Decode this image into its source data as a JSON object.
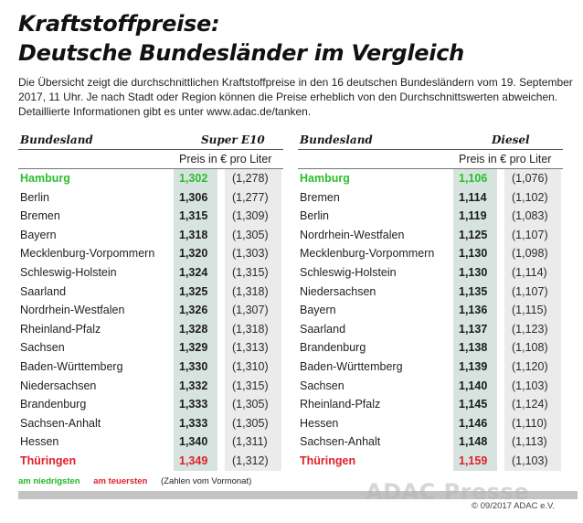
{
  "title_line1": "Kraftstoffpreise:",
  "title_line2": "Deutsche Bundesländer im Vergleich",
  "intro": "Die Übersicht zeigt die durchschnittlichen Kraftstoffpreise in den 16 deutschen Bundesländern vom 19. September 2017, 11 Uhr. Je nach Stadt oder Region können die Preise erheblich von den Durchschnittswerten abweichen. Detaillierte Informationen gibt es unter www.adac.de/tanken.",
  "e10": {
    "col_state": "Bundesland",
    "col_fuel": "Super E10",
    "unit": "Preis in € pro Liter",
    "rows": [
      {
        "state": "Hamburg",
        "price": "1,302",
        "prev": "(1,278)",
        "mark": "low"
      },
      {
        "state": "Berlin",
        "price": "1,306",
        "prev": "(1,277)",
        "mark": ""
      },
      {
        "state": "Bremen",
        "price": "1,315",
        "prev": "(1,309)",
        "mark": ""
      },
      {
        "state": "Bayern",
        "price": "1,318",
        "prev": "(1,305)",
        "mark": ""
      },
      {
        "state": "Mecklenburg-Vorpommern",
        "price": "1,320",
        "prev": "(1,303)",
        "mark": ""
      },
      {
        "state": "Schleswig-Holstein",
        "price": "1,324",
        "prev": "(1,315)",
        "mark": ""
      },
      {
        "state": "Saarland",
        "price": "1,325",
        "prev": "(1,318)",
        "mark": ""
      },
      {
        "state": "Nordrhein-Westfalen",
        "price": "1,326",
        "prev": "(1,307)",
        "mark": ""
      },
      {
        "state": "Rheinland-Pfalz",
        "price": "1,328",
        "prev": "(1,318)",
        "mark": ""
      },
      {
        "state": "Sachsen",
        "price": "1,329",
        "prev": "(1,313)",
        "mark": ""
      },
      {
        "state": "Baden-Württemberg",
        "price": "1,330",
        "prev": "(1,310)",
        "mark": ""
      },
      {
        "state": "Niedersachsen",
        "price": "1,332",
        "prev": "(1,315)",
        "mark": ""
      },
      {
        "state": "Brandenburg",
        "price": "1,333",
        "prev": "(1,305)",
        "mark": ""
      },
      {
        "state": "Sachsen-Anhalt",
        "price": "1,333",
        "prev": "(1,305)",
        "mark": ""
      },
      {
        "state": "Hessen",
        "price": "1,340",
        "prev": "(1,311)",
        "mark": ""
      },
      {
        "state": "Thüringen",
        "price": "1,349",
        "prev": "(1,312)",
        "mark": "high"
      }
    ]
  },
  "diesel": {
    "col_state": "Bundesland",
    "col_fuel": "Diesel",
    "unit": "Preis in € pro Liter",
    "rows": [
      {
        "state": "Hamburg",
        "price": "1,106",
        "prev": "(1,076)",
        "mark": "low"
      },
      {
        "state": "Bremen",
        "price": "1,114",
        "prev": "(1,102)",
        "mark": ""
      },
      {
        "state": "Berlin",
        "price": "1,119",
        "prev": "(1,083)",
        "mark": ""
      },
      {
        "state": "Nordrhein-Westfalen",
        "price": "1,125",
        "prev": "(1,107)",
        "mark": ""
      },
      {
        "state": "Mecklenburg-Vorpommern",
        "price": "1,130",
        "prev": "(1,098)",
        "mark": ""
      },
      {
        "state": "Schleswig-Holstein",
        "price": "1,130",
        "prev": "(1,114)",
        "mark": ""
      },
      {
        "state": "Niedersachsen",
        "price": "1,135",
        "prev": "(1,107)",
        "mark": ""
      },
      {
        "state": "Bayern",
        "price": "1,136",
        "prev": "(1,115)",
        "mark": ""
      },
      {
        "state": "Saarland",
        "price": "1,137",
        "prev": "(1,123)",
        "mark": ""
      },
      {
        "state": "Brandenburg",
        "price": "1,138",
        "prev": "(1,108)",
        "mark": ""
      },
      {
        "state": "Baden-Württemberg",
        "price": "1,139",
        "prev": "(1,120)",
        "mark": ""
      },
      {
        "state": "Sachsen",
        "price": "1,140",
        "prev": "(1,103)",
        "mark": ""
      },
      {
        "state": "Rheinland-Pfalz",
        "price": "1,145",
        "prev": "(1,124)",
        "mark": ""
      },
      {
        "state": "Hessen",
        "price": "1,146",
        "prev": "(1,110)",
        "mark": ""
      },
      {
        "state": "Sachsen-Anhalt",
        "price": "1,148",
        "prev": "(1,113)",
        "mark": ""
      },
      {
        "state": "Thüringen",
        "price": "1,159",
        "prev": "(1,103)",
        "mark": "high"
      }
    ]
  },
  "legend": {
    "low": "am niedrigsten",
    "high": "am teuersten",
    "note": "(Zahlen vom Vormonat)"
  },
  "watermark": "ADAC Presse",
  "copyright": "© 09/2017 ADAC e.V.",
  "colors": {
    "low": "#2bbf2b",
    "high": "#e0202a"
  }
}
